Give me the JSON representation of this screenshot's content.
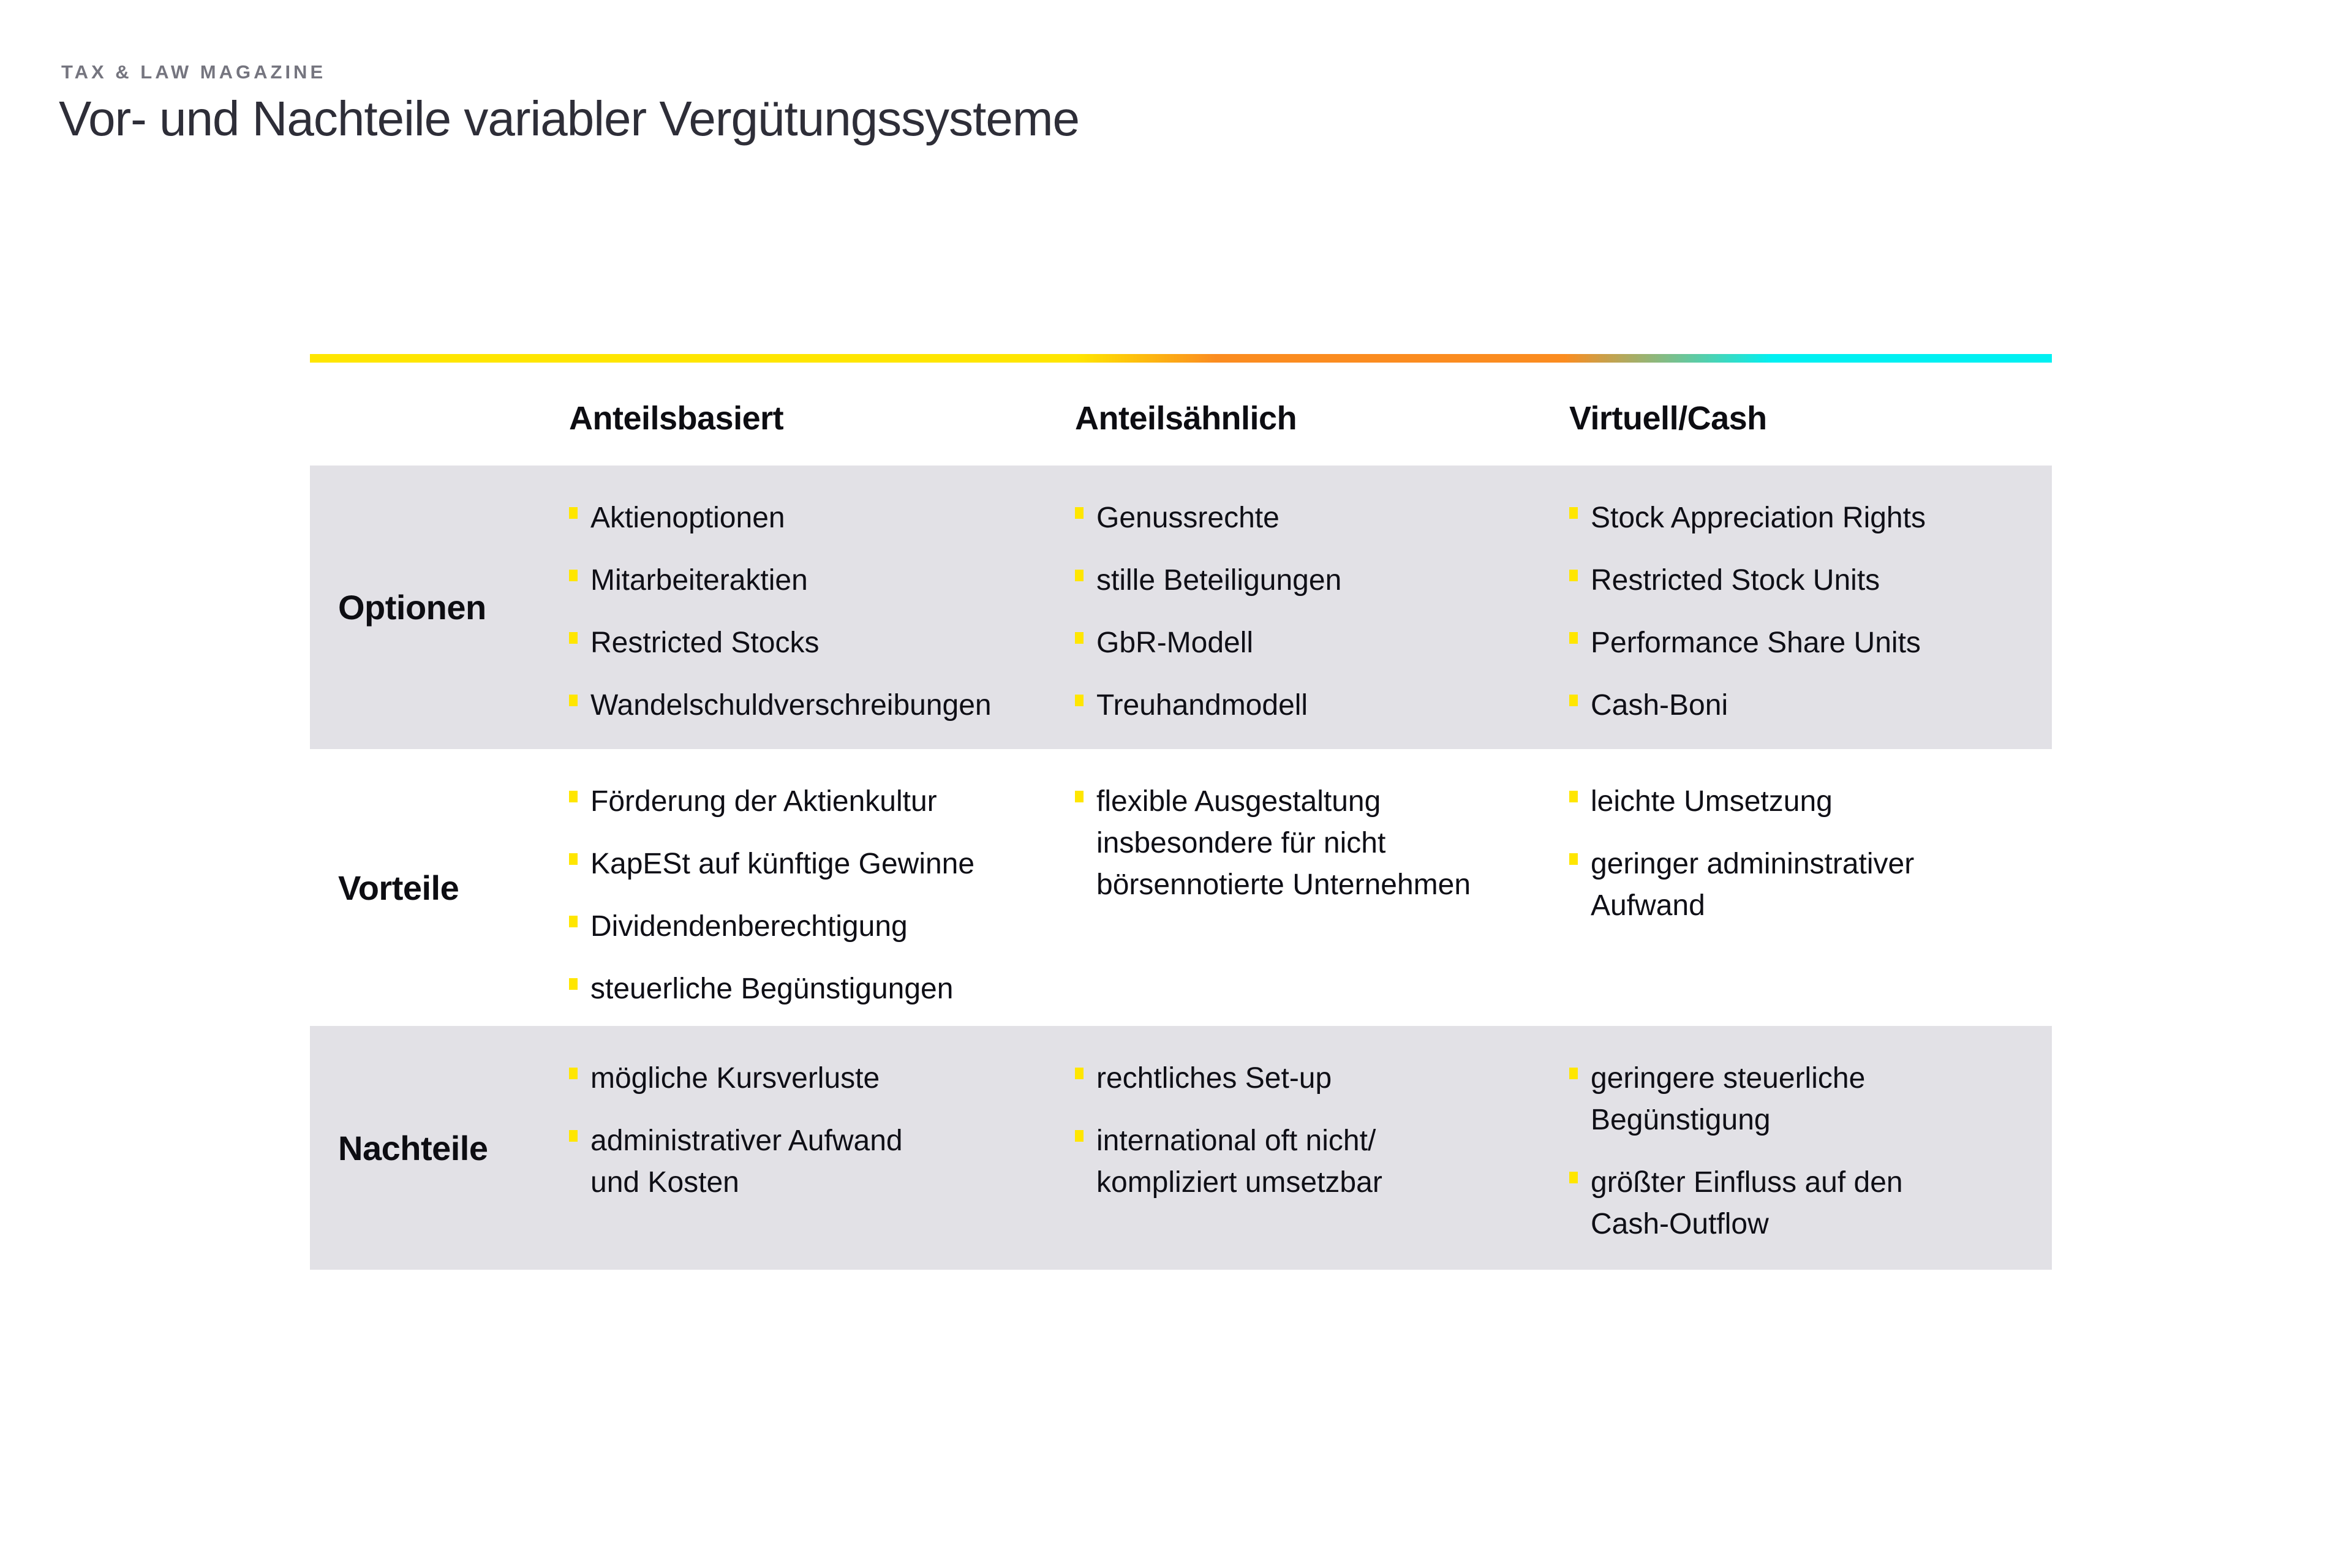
{
  "page": {
    "kicker": "TAX & LAW MAGAZINE",
    "title": "Vor- und Nachteile variabler Vergütungssysteme"
  },
  "colors": {
    "accent_yellow": "#FFE600",
    "accent_orange": "#FB8C20",
    "accent_cyan": "#00F0F2",
    "row_shade": "#E2E1E6",
    "text": "#0F0F16",
    "kicker_gray": "#75757F"
  },
  "table": {
    "columns": [
      "Anteilsbasiert",
      "Anteilsähnlich",
      "Virtuell/Cash"
    ],
    "rows": [
      {
        "label": "Optionen",
        "cells": [
          [
            "Aktienoptionen",
            "Mitarbeiteraktien",
            "Restricted Stocks",
            "Wandelschuldverschreibungen"
          ],
          [
            "Genussrechte",
            "stille Beteiligungen",
            "GbR-Modell",
            "Treuhandmodell"
          ],
          [
            "Stock Appreciation Rights",
            "Restricted Stock Units",
            "Performance Share Units",
            "Cash-Boni"
          ]
        ]
      },
      {
        "label": "Vorteile",
        "cells": [
          [
            "Förderung der Aktienkultur",
            "KapESt auf künftige Gewinne",
            "Dividendenberechtigung",
            "steuerliche Begünstigungen"
          ],
          [
            "flexible Ausgestaltung\ninsbesondere für nicht\nbörsennotierte Unternehmen"
          ],
          [
            "leichte Umsetzung",
            "geringer admininstrativer\nAufwand"
          ]
        ]
      },
      {
        "label": "Nachteile",
        "cells": [
          [
            "mögliche Kursverluste",
            "administrativer Aufwand\nund Kosten"
          ],
          [
            "rechtliches Set-up",
            "international oft nicht/\nkompliziert umsetzbar"
          ],
          [
            "geringere steuerliche\nBegünstigung",
            "größter Einfluss auf den\nCash-Outflow"
          ]
        ]
      }
    ]
  }
}
